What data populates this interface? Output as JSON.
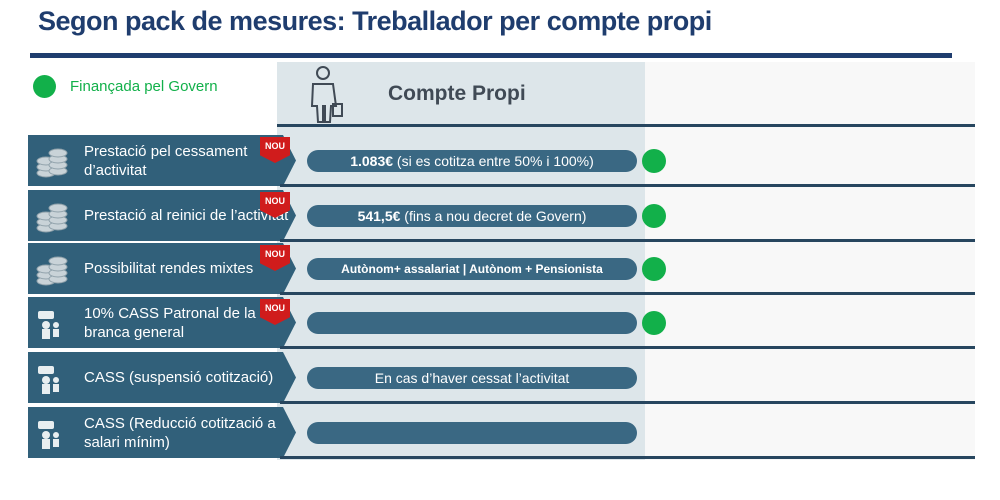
{
  "title": "Segon pack de mesures: Treballador per compte propi",
  "legend": {
    "label": "Finançada pel Govern"
  },
  "column_header": "Compte Propi",
  "rows": [
    {
      "label": "Prestació pel cessament d’activitat",
      "badge": "NOU",
      "pill_bold": "1.083€",
      "pill_text": "(si es cotitza entre 50% i 100%)",
      "financed": true
    },
    {
      "label": "Prestació al reinici de l’activitat",
      "badge": "NOU",
      "pill_bold": "541,5€",
      "pill_text": "(fins a nou decret de Govern)",
      "financed": true
    },
    {
      "label": "Possibilitat rendes mixtes",
      "badge": "NOU",
      "pill_bold": "Autònom+ assalariat | Autònom + Pensionista",
      "financed": true
    },
    {
      "label": "10% CASS Patronal de la branca general",
      "badge": "NOU",
      "financed": true
    },
    {
      "label": "CASS (suspensió cotització)",
      "pill_text": "En cas d’haver cessat l’activitat",
      "financed": false
    },
    {
      "label": "CASS (Reducció cotització a salari mínim)",
      "financed": false
    }
  ]
}
